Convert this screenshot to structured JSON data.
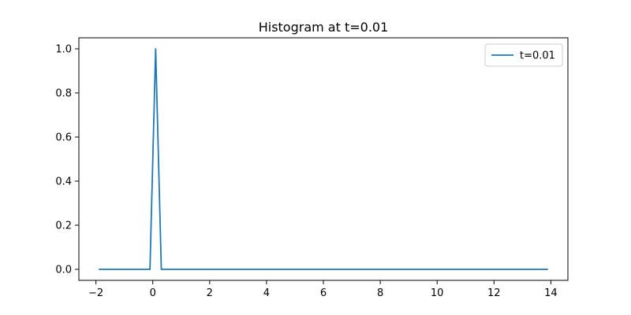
{
  "chart_data": {
    "type": "line",
    "title": "Histogram at t=0.01",
    "xlabel": "",
    "ylabel": "",
    "xlim": [
      -2.6,
      14.6
    ],
    "ylim": [
      -0.05,
      1.05
    ],
    "x_ticks": [
      -2,
      0,
      2,
      4,
      6,
      8,
      10,
      12,
      14
    ],
    "y_ticks": [
      0.0,
      0.2,
      0.4,
      0.6,
      0.8,
      1.0
    ],
    "x_tick_labels": [
      "−2",
      "0",
      "2",
      "4",
      "6",
      "8",
      "10",
      "12",
      "14"
    ],
    "y_tick_labels": [
      "0.0",
      "0.2",
      "0.4",
      "0.6",
      "0.8",
      "1.0"
    ],
    "grid": false,
    "legend_position": "top-right",
    "series": [
      {
        "name": "t=0.01",
        "color": "#1f77b4",
        "x": [
          -1.9,
          -0.1,
          0.1,
          0.3,
          13.9
        ],
        "y": [
          0.0,
          0.0,
          1.0,
          0.0,
          0.0
        ]
      }
    ]
  }
}
